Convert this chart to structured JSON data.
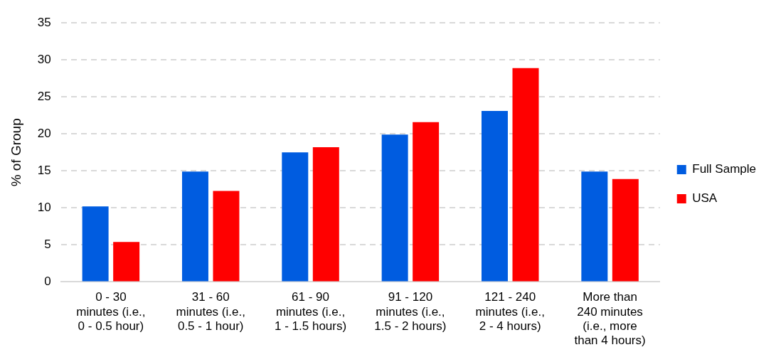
{
  "chart_data": {
    "type": "bar",
    "ylabel": "% of Group",
    "categories": [
      "0 - 30\nminutes (i.e.,\n0 - 0.5 hour)",
      "31 - 60\nminutes (i.e.,\n0.5 - 1 hour)",
      "61 - 90\nminutes (i.e.,\n1 - 1.5 hours)",
      "91 - 120\nminutes (i.e.,\n1.5 - 2 hours)",
      "121 - 240\nminutes (i.e.,\n2 - 4 hours)",
      "More than\n240 minutes\n(i.e., more\nthan 4 hours)"
    ],
    "series": [
      {
        "name": "Full Sample",
        "color": "#005ce0",
        "values": [
          10.2,
          14.9,
          17.5,
          19.9,
          23.1,
          14.9
        ]
      },
      {
        "name": "USA",
        "color": "#ff0000",
        "values": [
          5.4,
          12.3,
          18.2,
          21.6,
          28.9,
          13.9
        ]
      }
    ],
    "ylim": [
      0,
      35
    ],
    "yticks": [
      0,
      5,
      10,
      15,
      20,
      25,
      30,
      35
    ],
    "grid": "y",
    "legend": "right"
  }
}
